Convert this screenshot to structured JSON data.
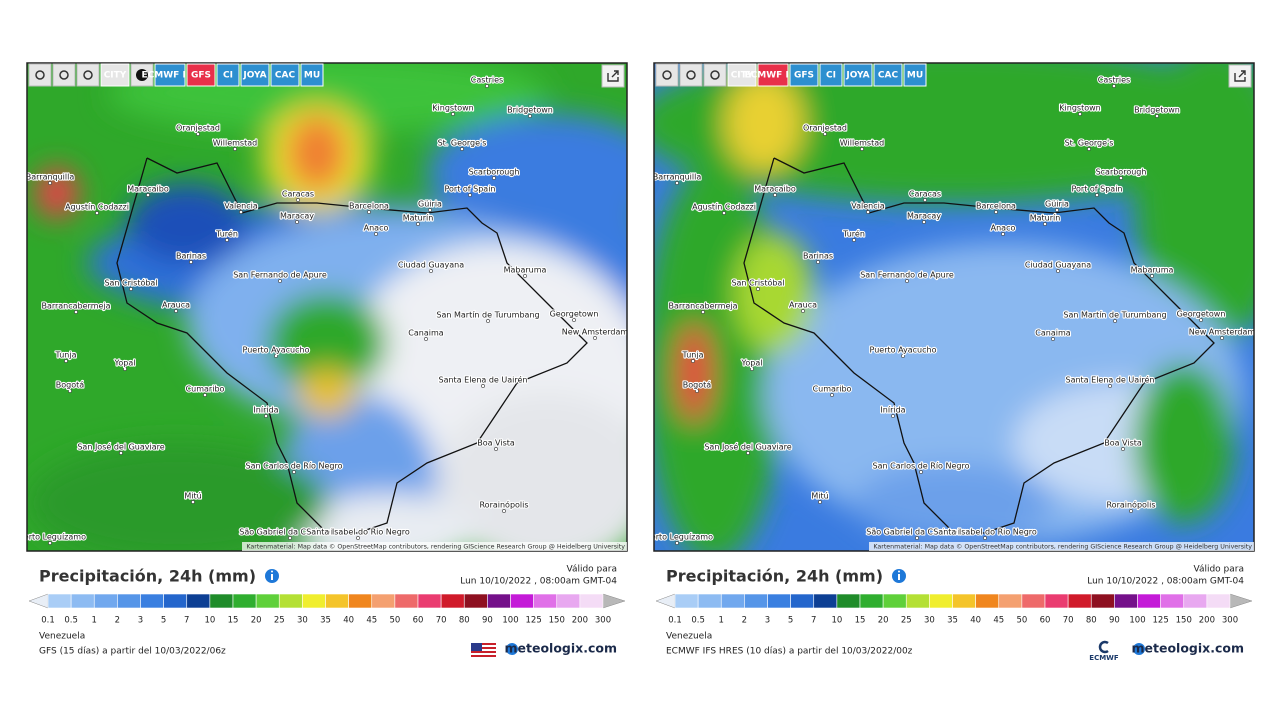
{
  "places": [
    "Castries",
    "Kingstown",
    "Bridgetown",
    "Oranjestad",
    "Willemstad",
    "St. George's",
    "Scarborough",
    "Barranquilla",
    "Maracaibo",
    "Caracas",
    "Port of Spain",
    "Agustín Codazzi",
    "Valencia",
    "Maracay",
    "Barcelona",
    "Güiria",
    "Maturín",
    "Turén",
    "Anaco",
    "Barinas",
    "Ciudad Guayana",
    "Mabaruma",
    "San Fernando de Apure",
    "San Cristóbal",
    "Arauca",
    "Barrancabermeja",
    "Georgetown",
    "San Martín de Turumbang",
    "New Amsterdam",
    "Canaima",
    "Puerto Ayacucho",
    "Tunja",
    "Yopal",
    "Bogotá",
    "Santa Elena de Uairén",
    "Cumaribo",
    "Inírida",
    "Boa Vista",
    "San José del Guaviare",
    "San Carlos de Río Negro",
    "Mitú",
    "Rorainópolis",
    "São Gabriel da Cachoeira",
    "Santa Isabel do Rio Negro",
    "Puerto Leguízamo"
  ],
  "legend": {
    "labels": [
      "0.1",
      "0.5",
      "1",
      "2",
      "3",
      "5",
      "7",
      "10",
      "15",
      "20",
      "25",
      "30",
      "35",
      "40",
      "45",
      "50",
      "60",
      "70",
      "80",
      "90",
      "100",
      "125",
      "150",
      "200",
      "300"
    ],
    "colors": [
      "#a9cdf6",
      "#8dbbf2",
      "#71a8ee",
      "#5595e8",
      "#3a7fe0",
      "#2466cc",
      "#0d3f94",
      "#1f8c2a",
      "#2fae2f",
      "#5fd03a",
      "#b4e034",
      "#f0ee2e",
      "#f4c42a",
      "#f0861e",
      "#f4a070",
      "#ee6a6a",
      "#ea3c70",
      "#d01a2a",
      "#8e1020",
      "#74108a",
      "#c41ad8",
      "#e070e8",
      "#e8a8f0",
      "#f4dcf6"
    ],
    "under_color": "#e8eef6",
    "over_color": "#b8b8b8"
  },
  "attribution": "Kartenmaterial: Map data © OpenStreetMap contributors, rendering GIScience Research Group @ Heidelberg University",
  "panels": [
    {
      "toolbar": [
        {
          "label": "CITY",
          "color": "#e6e6e6"
        },
        {
          "label": "ECMWF IFS",
          "color": "#2d8fd0"
        },
        {
          "label": "GFS",
          "color": "#e8304a"
        },
        {
          "label": "CI",
          "color": "#2d8fd0"
        },
        {
          "label": "JOYA",
          "color": "#2d8fd0"
        },
        {
          "label": "CAC",
          "color": "#2d8fd0"
        },
        {
          "label": "MU",
          "color": "#2d8fd0"
        }
      ],
      "title": "Precipitación, 24h (mm)",
      "valid_label": "Válido para",
      "valid_time": "Lun 10/10/2022 , 08:00am GMT-04",
      "region": "Venezuela",
      "model": "GFS (15 días) a partir del 10/03/2022/06z",
      "logo": "meteologix.com"
    },
    {
      "toolbar": [
        {
          "label": "CITY",
          "color": "#e6e6e6"
        },
        {
          "label": "ECMWF IFS",
          "color": "#e8304a"
        },
        {
          "label": "GFS",
          "color": "#2d8fd0"
        },
        {
          "label": "CI",
          "color": "#2d8fd0"
        },
        {
          "label": "JOYA",
          "color": "#2d8fd0"
        },
        {
          "label": "CAC",
          "color": "#2d8fd0"
        },
        {
          "label": "MU",
          "color": "#2d8fd0"
        }
      ],
      "title": "Precipitación, 24h (mm)",
      "valid_label": "Válido para",
      "valid_time": "Lun 10/10/2022 , 08:00am GMT-04",
      "region": "Venezuela",
      "model": "ECMWF IFS HRES (10 días) a partir del 10/03/2022/00z",
      "logo": "meteologix.com",
      "provider": "ECMWF"
    }
  ]
}
